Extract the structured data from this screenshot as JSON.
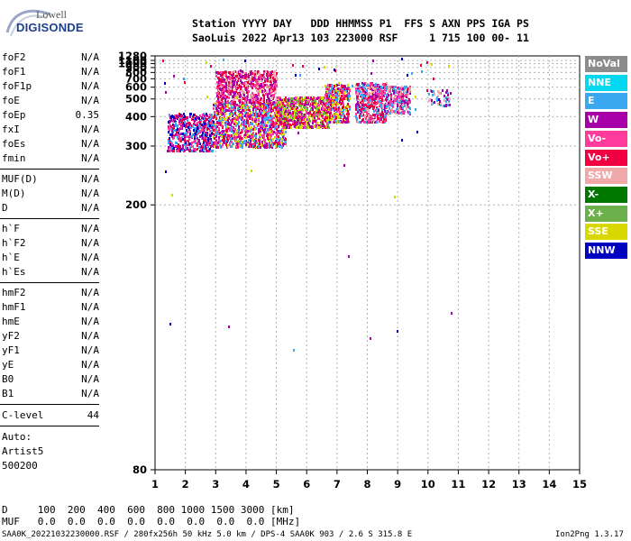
{
  "logo": {
    "line1": "Lowell",
    "line2": "DIGISONDE"
  },
  "header": {
    "line1": "Station YYYY DAY   DDD HHMMSS P1  FFS S AXN PPS IGA PS",
    "line2": "SaoLuis 2022 Apr13 103 223000 RSF     1 715 100 00- 11"
  },
  "params_group1": [
    {
      "name": "foF2",
      "value": "N/A"
    },
    {
      "name": "foF1",
      "value": "N/A"
    },
    {
      "name": "foF1p",
      "value": "N/A"
    },
    {
      "name": "foE",
      "value": "N/A"
    },
    {
      "name": "foEp",
      "value": "0.35"
    },
    {
      "name": "fxI",
      "value": "N/A"
    },
    {
      "name": "foEs",
      "value": "N/A"
    },
    {
      "name": "fmin",
      "value": "N/A"
    }
  ],
  "params_group2": [
    {
      "name": "MUF(D)",
      "value": "N/A"
    },
    {
      "name": "M(D)",
      "value": "N/A"
    },
    {
      "name": "D",
      "value": "N/A"
    }
  ],
  "params_group3": [
    {
      "name": "h`F",
      "value": "N/A"
    },
    {
      "name": "h`F2",
      "value": "N/A"
    },
    {
      "name": "h`E",
      "value": "N/A"
    },
    {
      "name": "h`Es",
      "value": "N/A"
    }
  ],
  "params_group4": [
    {
      "name": "hmF2",
      "value": "N/A"
    },
    {
      "name": "hmF1",
      "value": "N/A"
    },
    {
      "name": "hmE",
      "value": "N/A"
    },
    {
      "name": "yF2",
      "value": "N/A"
    },
    {
      "name": "yF1",
      "value": "N/A"
    },
    {
      "name": "yE",
      "value": "N/A"
    },
    {
      "name": "B0",
      "value": "N/A"
    },
    {
      "name": "B1",
      "value": "N/A"
    }
  ],
  "clevel": {
    "name": "C-level",
    "value": "44"
  },
  "autoscaling": [
    "Auto:",
    "Artist5",
    "500200"
  ],
  "legend": [
    {
      "label": "NoVal",
      "color": "#8c8c8c"
    },
    {
      "label": "NNE",
      "color": "#00d8f0"
    },
    {
      "label": "E",
      "color": "#3aa8f0"
    },
    {
      "label": "W",
      "color": "#a800a8"
    },
    {
      "label": "Vo-",
      "color": "#ff3c9c"
    },
    {
      "label": "Vo+",
      "color": "#f00040"
    },
    {
      "label": "SSW",
      "color": "#f0a8a8"
    },
    {
      "label": "X-",
      "color": "#007800"
    },
    {
      "label": "X+",
      "color": "#6cb04c"
    },
    {
      "label": "SSE",
      "color": "#d8d800"
    },
    {
      "label": "NNW",
      "color": "#0000c0"
    }
  ],
  "bottom": {
    "d_row": "D     100  200  400  600  800 1000 1500 3000 [km]",
    "muf_row": "MUF   0.0  0.0  0.0  0.0  0.0  0.0  0.0  0.0 [MHz]"
  },
  "footer": {
    "left": "SAA0K_20221032230000.RSF / 280fx256h 50 kHz 5.0 km / DPS-4 SAA0K 903 / 2.6 S 315.8 E",
    "right": "Ion2Png 1.3.17"
  },
  "chart_data": {
    "type": "scatter",
    "title": "",
    "xlabel": "",
    "ylabel": "",
    "x_ticks": [
      "1",
      "2",
      "3",
      "4",
      "5",
      "6",
      "7",
      "8",
      "9",
      "10",
      "11",
      "12",
      "13",
      "14",
      "15"
    ],
    "xlim": [
      1,
      15
    ],
    "y_ticks": [
      "80",
      "200",
      "300",
      "400",
      "500",
      "600",
      "700",
      "800",
      "900",
      "1000",
      "1100",
      "1280"
    ],
    "y_scale": "reciprocal",
    "ylim": [
      80,
      1280
    ],
    "clusters": [
      {
        "x": [
          1.4,
          2.9
        ],
        "y": [
          290,
          420
        ],
        "dots": 520,
        "colors": [
          "#a800a8",
          "#0000c0",
          "#3aa8f0",
          "#f00040",
          "#ff3c9c"
        ]
      },
      {
        "x": [
          2.9,
          5.3
        ],
        "y": [
          300,
          480
        ],
        "dots": 1100,
        "colors": [
          "#ff3c9c",
          "#f00040",
          "#a800a8",
          "#d8d800",
          "#3aa8f0"
        ]
      },
      {
        "x": [
          3.0,
          5.0
        ],
        "y": [
          480,
          850
        ],
        "dots": 700,
        "colors": [
          "#a800a8",
          "#ff3c9c",
          "#f00040",
          "#f0a8a8"
        ]
      },
      {
        "x": [
          5.0,
          6.7
        ],
        "y": [
          360,
          520
        ],
        "dots": 700,
        "colors": [
          "#f00040",
          "#ff3c9c",
          "#a800a8",
          "#d8d800",
          "#6cb04c"
        ]
      },
      {
        "x": [
          6.6,
          7.4
        ],
        "y": [
          380,
          640
        ],
        "dots": 380,
        "colors": [
          "#ff3c9c",
          "#f00040",
          "#a800a8",
          "#3aa8f0",
          "#d8d800"
        ]
      },
      {
        "x": [
          7.6,
          8.6
        ],
        "y": [
          380,
          660
        ],
        "dots": 480,
        "colors": [
          "#ff3c9c",
          "#f00040",
          "#a800a8",
          "#3aa8f0",
          "#f0a8a8"
        ]
      },
      {
        "x": [
          8.6,
          9.4
        ],
        "y": [
          420,
          620
        ],
        "dots": 280,
        "colors": [
          "#3aa8f0",
          "#ff3c9c",
          "#a800a8",
          "#f0a8a8"
        ]
      },
      {
        "x": [
          10.0,
          10.7
        ],
        "y": [
          460,
          580
        ],
        "dots": 50,
        "colors": [
          "#f0a8a8",
          "#a800a8",
          "#3aa8f0"
        ]
      },
      {
        "x": [
          1.2,
          11.0
        ],
        "y": [
          100,
          1280
        ],
        "dots": 70,
        "colors": [
          "#a800a8",
          "#3aa8f0",
          "#d8d800",
          "#f00040",
          "#0000c0"
        ]
      }
    ]
  }
}
